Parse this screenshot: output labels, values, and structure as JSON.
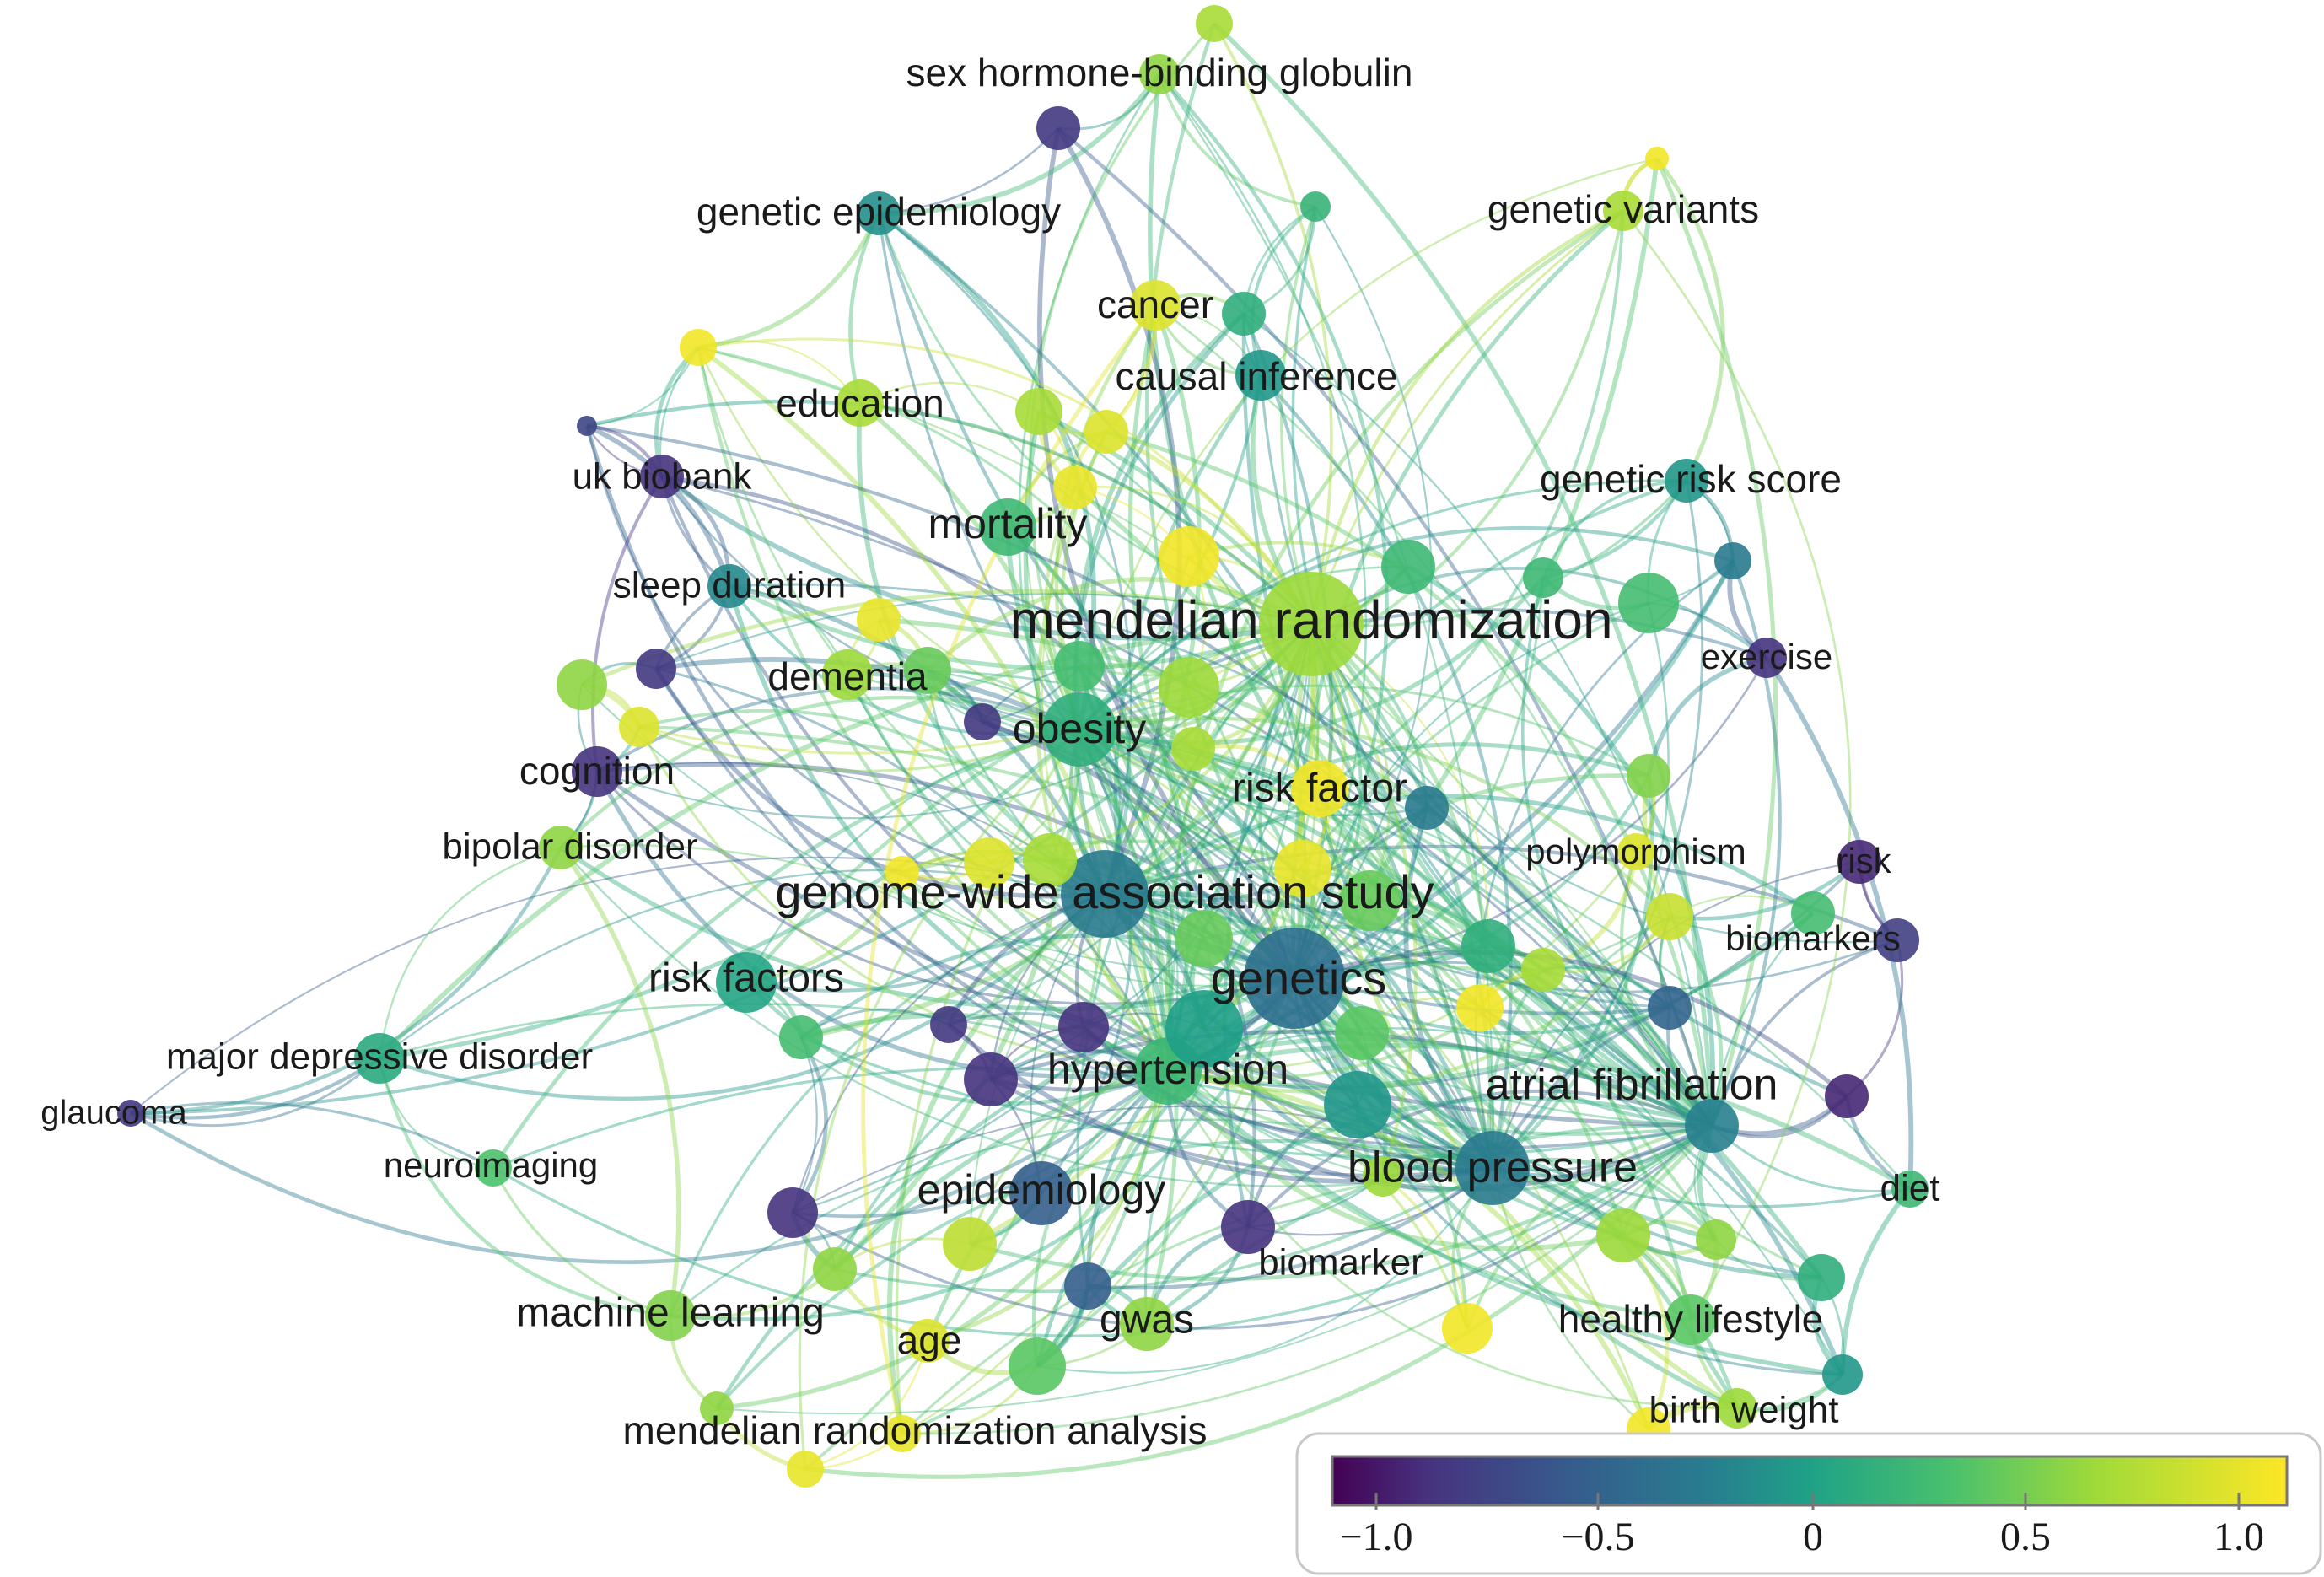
{
  "keywords": [
    {
      "id": "mr",
      "label": "mendelian randomization",
      "score": 0.55
    },
    {
      "id": "gwas_full",
      "label": "genome-wide association study",
      "score": -0.35
    },
    {
      "id": "genetics",
      "label": "genetics",
      "score": -0.45
    },
    {
      "id": "obesity",
      "label": "obesity",
      "score": 0.05
    },
    {
      "id": "af",
      "label": "atrial fibrillation",
      "score": -0.3
    },
    {
      "id": "bp",
      "label": "blood pressure",
      "score": -0.35
    },
    {
      "id": "hypertension",
      "label": "hypertension",
      "score": 0.15
    },
    {
      "id": "epidemiology",
      "label": "epidemiology",
      "score": -0.6
    },
    {
      "id": "riskfactors",
      "label": "risk factors",
      "score": -0.05
    },
    {
      "id": "mortality",
      "label": "mortality",
      "score": 0.15
    },
    {
      "id": "dementia",
      "label": "dementia",
      "score": 0.55
    },
    {
      "id": "riskfactor",
      "label": "risk factor",
      "score": 0.95
    },
    {
      "id": "gwas",
      "label": "gwas",
      "score": 0.5
    },
    {
      "id": "ml",
      "label": "machine learning",
      "score": 0.45
    },
    {
      "id": "cancer",
      "label": "cancer",
      "score": 0.85
    },
    {
      "id": "causal",
      "label": "causal inference",
      "score": -0.15
    },
    {
      "id": "education",
      "label": "education",
      "score": 0.6
    },
    {
      "id": "ukbiobank",
      "label": "uk biobank",
      "score": -0.95
    },
    {
      "id": "sleep",
      "label": "sleep duration",
      "score": -0.25
    },
    {
      "id": "cognition",
      "label": "cognition",
      "score": -0.95
    },
    {
      "id": "bipolar",
      "label": "bipolar disorder",
      "score": 0.5
    },
    {
      "id": "mdd",
      "label": "major depressive disorder",
      "score": 0.0
    },
    {
      "id": "glaucoma",
      "label": "glaucoma",
      "score": -0.9
    },
    {
      "id": "neuroimaging",
      "label": "neuroimaging",
      "score": 0.25
    },
    {
      "id": "age",
      "label": "age",
      "score": 0.85
    },
    {
      "id": "mra",
      "label": "mendelian randomization analysis",
      "score": 0.9
    },
    {
      "id": "biomarker",
      "label": "biomarker",
      "score": -0.95
    },
    {
      "id": "healthy",
      "label": "healthy lifestyle",
      "score": 0.3
    },
    {
      "id": "birthweight",
      "label": "birth weight",
      "score": 0.55
    },
    {
      "id": "diet",
      "label": "diet",
      "score": 0.15
    },
    {
      "id": "biomarkers",
      "label": "biomarkers",
      "score": -0.85
    },
    {
      "id": "risk",
      "label": "risk",
      "score": -1.0
    },
    {
      "id": "polymorphism",
      "label": "polymorphism",
      "score": 0.85
    },
    {
      "id": "exercise",
      "label": "exercise",
      "score": -0.95
    },
    {
      "id": "grs",
      "label": "genetic risk score",
      "score": -0.15
    },
    {
      "id": "geneticvariants",
      "label": "genetic variants",
      "score": 0.6
    },
    {
      "id": "geneticepi",
      "label": "genetic epidemiology",
      "score": -0.2
    },
    {
      "id": "shbg",
      "label": "sex hormone-binding globulin",
      "score": 0.5
    }
  ],
  "legend": {
    "colormap": "viridis",
    "range": [
      -1.0,
      1.0
    ],
    "ticks": [
      "−1.0",
      "−0.5",
      "0",
      "0.5",
      "1.0"
    ]
  }
}
